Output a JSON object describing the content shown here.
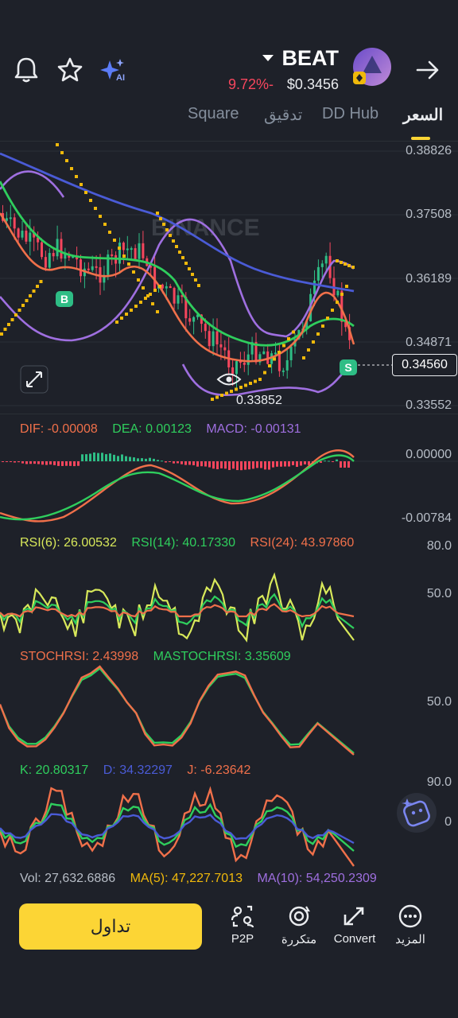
{
  "header": {
    "pair": "BEAT",
    "change": "9.72%-",
    "price": "$0.3456",
    "icons": [
      "bell-icon",
      "star-icon",
      "ai-sparkle-icon",
      "dropdown-icon",
      "token-avatar",
      "arrow-right-icon"
    ]
  },
  "tabs": [
    {
      "label": "Square"
    },
    {
      "label": "تدقيق"
    },
    {
      "label": "DD Hub"
    },
    {
      "label": "السعر"
    }
  ],
  "chart": {
    "watermark": "BINANCE",
    "axis": [
      "0.38826",
      "0.37508",
      "0.36189",
      "0.34871",
      "0.33552"
    ],
    "current_price": "0.34560",
    "low_label": "0.33852",
    "buy_marker": "B",
    "sell_marker": "S"
  },
  "macd": {
    "dif": "DIF: -0.00008",
    "dea": "DEA: 0.00123",
    "macd": "MACD: -0.00131",
    "axis": [
      "0.00000",
      "-0.00784"
    ]
  },
  "rsi": {
    "rsi6": "RSI(6): 26.00532",
    "rsi14": "RSI(14): 40.17330",
    "rsi24": "RSI(24): 43.97860",
    "axis": [
      "80.0",
      "50.0"
    ]
  },
  "stochrsi": {
    "stoch": "STOCHRSI: 2.43998",
    "ma": "MASTOCHRSI: 3.35609",
    "axis": [
      "50.0"
    ]
  },
  "kdj": {
    "k": "K: 20.80317",
    "d": "D: 34.32297",
    "j": "J: -6.23642",
    "axis": [
      "90.0",
      "0"
    ]
  },
  "vol": {
    "vol": "Vol: 27,632.6886",
    "ma5": "MA(5): 47,227.7013",
    "ma10": "MA(10): 54,250.2309"
  },
  "bottom": {
    "trade": "تداول",
    "nav": [
      {
        "label": "P2P"
      },
      {
        "label": "متكررة"
      },
      {
        "label": "Convert"
      },
      {
        "label": "المزيد"
      }
    ]
  },
  "colors": {
    "up": "#2ebd85",
    "down": "#f6465d",
    "accent": "#fcd535",
    "purple": "#9f6fe0",
    "blue": "#4a5bd6",
    "orange": "#f0704a",
    "green": "#2fce5d",
    "yellow": "#d8e85a"
  }
}
